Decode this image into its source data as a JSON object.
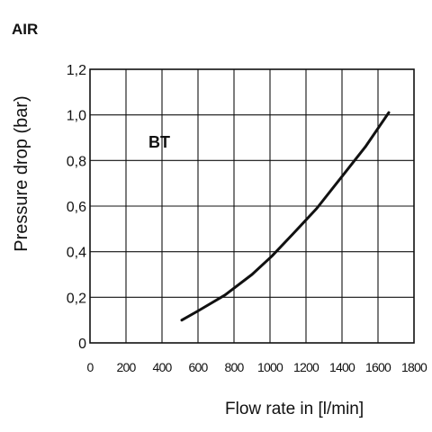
{
  "chart_data": {
    "type": "line",
    "heading": "AIR",
    "xlabel": "Flow rate in [l/min]",
    "ylabel": "Pressure drop (bar)",
    "xlim": [
      0,
      1800
    ],
    "ylim": [
      0,
      1.2
    ],
    "x_ticks": [
      "0",
      "200",
      "400",
      "600",
      "800",
      "1000",
      "1200",
      "1400",
      "1600",
      "1800"
    ],
    "y_ticks": [
      "0",
      "0,2",
      "0,4",
      "0,6",
      "0,8",
      "1,0",
      "1,2"
    ],
    "grid": true,
    "annotation": "BT",
    "series": [
      {
        "name": "BT",
        "color": "#111111",
        "points": [
          {
            "x": 510,
            "y": 0.1
          },
          {
            "x": 600,
            "y": 0.14
          },
          {
            "x": 750,
            "y": 0.21
          },
          {
            "x": 900,
            "y": 0.3
          },
          {
            "x": 1010,
            "y": 0.38
          },
          {
            "x": 1130,
            "y": 0.48
          },
          {
            "x": 1260,
            "y": 0.59
          },
          {
            "x": 1390,
            "y": 0.72
          },
          {
            "x": 1530,
            "y": 0.86
          },
          {
            "x": 1660,
            "y": 1.01
          }
        ]
      }
    ]
  }
}
